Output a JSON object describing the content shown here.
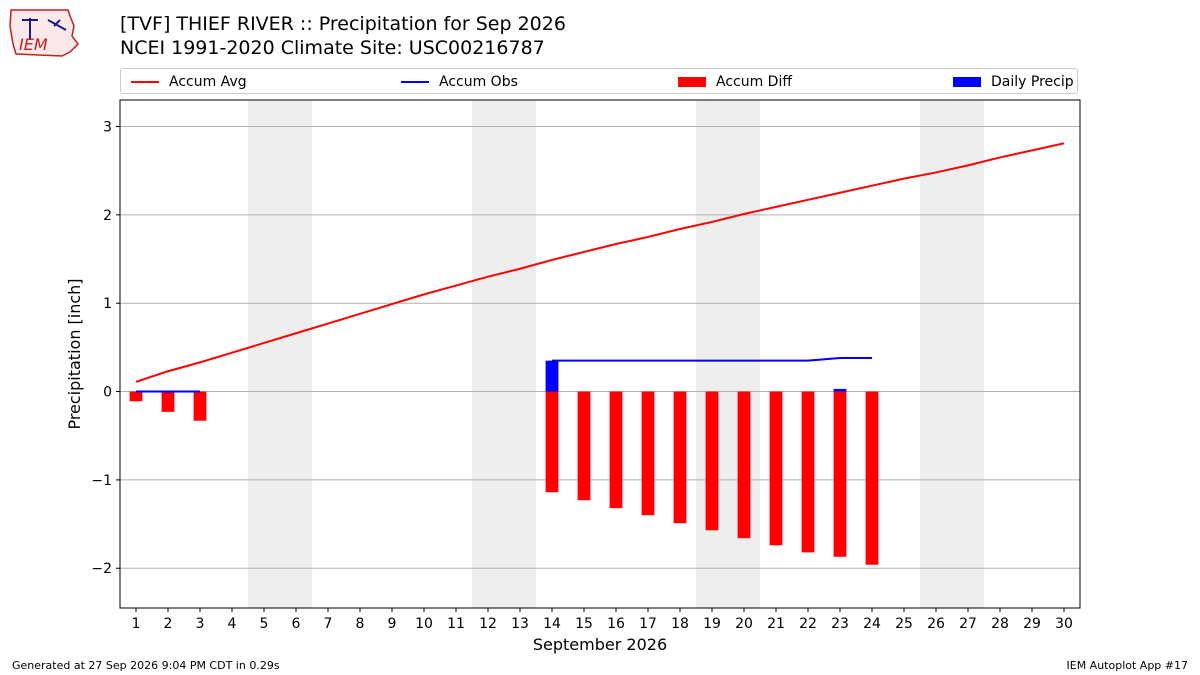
{
  "logo": {
    "text": "IEM"
  },
  "header": {
    "title_line1": "[TVF] THIEF RIVER :: Precipitation for Sep 2026",
    "title_line2": "NCEI 1991-2020 Climate Site: USC00216787"
  },
  "legend": {
    "items": [
      {
        "label": "Accum Avg",
        "kind": "line",
        "color": "#ff0000"
      },
      {
        "label": "Accum Obs",
        "kind": "line",
        "color": "#0000ff"
      },
      {
        "label": "Accum Diff",
        "kind": "patch",
        "color": "#ff0000"
      },
      {
        "label": "Daily Precip",
        "kind": "patch",
        "color": "#0000ff"
      }
    ]
  },
  "footer": {
    "left": "Generated at 27 Sep 2026 9:04 PM CDT in 0.29s",
    "right": "IEM Autoplot App #17"
  },
  "chart_data": {
    "type": "bar",
    "xlabel": "September 2026",
    "ylabel": "Precipitation [inch]",
    "xlim": [
      0.5,
      30.5
    ],
    "ylim": [
      -2.45,
      3.3
    ],
    "yticks": [
      -2,
      -1,
      0,
      1,
      2,
      3
    ],
    "ytick_labels": [
      "−2",
      "−1",
      "0",
      "1",
      "2",
      "3"
    ],
    "xticks": [
      1,
      2,
      3,
      4,
      5,
      6,
      7,
      8,
      9,
      10,
      11,
      12,
      13,
      14,
      15,
      16,
      17,
      18,
      19,
      20,
      21,
      22,
      23,
      24,
      25,
      26,
      27,
      28,
      29,
      30
    ],
    "grid": "y",
    "weekend_shading": [
      [
        4.5,
        6.5
      ],
      [
        11.5,
        13.5
      ],
      [
        18.5,
        20.5
      ],
      [
        25.5,
        27.5
      ]
    ],
    "weekend_color": "#eeeeee",
    "series": [
      {
        "name": "Accum Avg",
        "kind": "line",
        "color": "#ff0000",
        "x": [
          1,
          2,
          3,
          4,
          5,
          6,
          7,
          8,
          9,
          10,
          11,
          12,
          13,
          14,
          15,
          16,
          17,
          18,
          19,
          20,
          21,
          22,
          23,
          24,
          25,
          26,
          27,
          28,
          29,
          30
        ],
        "values": [
          0.11,
          0.23,
          0.33,
          0.44,
          0.55,
          0.66,
          0.77,
          0.88,
          0.99,
          1.1,
          1.2,
          1.3,
          1.39,
          1.49,
          1.58,
          1.67,
          1.75,
          1.84,
          1.92,
          2.01,
          2.09,
          2.17,
          2.25,
          2.33,
          2.41,
          2.48,
          2.56,
          2.65,
          2.73,
          2.81
        ]
      },
      {
        "name": "Accum Obs",
        "kind": "line",
        "color": "#0000ff",
        "x": [
          1,
          2,
          3
        ],
        "values": [
          0.0,
          0.0,
          0.0
        ]
      },
      {
        "name": "Accum Obs",
        "kind": "line",
        "color": "#0000ff",
        "x": [
          14,
          15,
          16,
          17,
          18,
          19,
          20,
          21,
          22,
          23,
          24
        ],
        "values": [
          0.35,
          0.35,
          0.35,
          0.35,
          0.35,
          0.35,
          0.35,
          0.35,
          0.35,
          0.38,
          0.38
        ]
      },
      {
        "name": "Accum Diff",
        "kind": "bar",
        "color": "#ff0000",
        "x": [
          1,
          2,
          3,
          14,
          15,
          16,
          17,
          18,
          19,
          20,
          21,
          22,
          23,
          24
        ],
        "values": [
          -0.11,
          -0.23,
          -0.33,
          -1.14,
          -1.23,
          -1.32,
          -1.4,
          -1.49,
          -1.57,
          -1.66,
          -1.74,
          -1.82,
          -1.87,
          -1.96
        ]
      },
      {
        "name": "Daily Precip",
        "kind": "bar",
        "color": "#0000ff",
        "x": [
          14,
          23
        ],
        "values": [
          0.35,
          0.03
        ]
      }
    ]
  }
}
